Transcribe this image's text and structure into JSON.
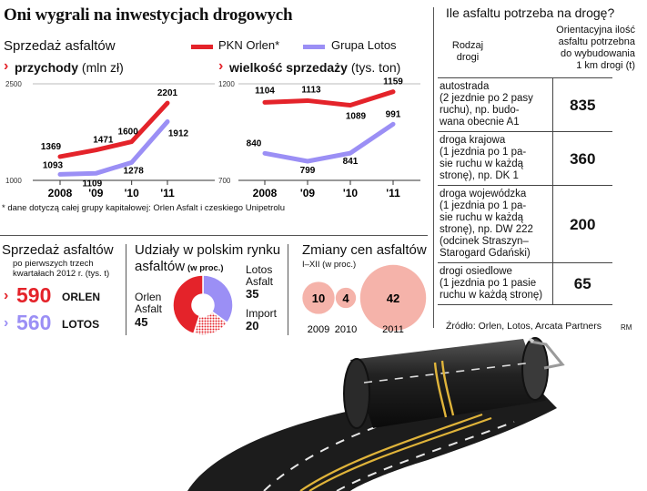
{
  "title": "Oni wygrali na inwestycjach drogowych",
  "legend": {
    "section_label": "Sprzedaż asfaltów",
    "orlen": "PKN Orlen*",
    "lotos": "Grupa Lotos"
  },
  "colors": {
    "orlen": "#e4232a",
    "lotos": "#9b8ff5",
    "orlen_light": "#f5b3aa",
    "lotos_light": "#c6c1f7"
  },
  "footnote": "* dane dotyczą całej grupy kapitałowej: Orlen Asfalt i czeskiego Unipetrolu",
  "chart_data": [
    {
      "type": "line",
      "title": "przychody",
      "unit": "(mln zł)",
      "x": [
        "2008",
        "'09",
        "'10",
        "'11"
      ],
      "ylim": [
        1000,
        2500
      ],
      "ytick_labels": [
        "2500",
        "1000"
      ],
      "series": [
        {
          "name": "PKN Orlen*",
          "values": [
            1369,
            1471,
            1600,
            2201
          ]
        },
        {
          "name": "Grupa Lotos",
          "values": [
            1093,
            1109,
            1278,
            1912
          ]
        }
      ]
    },
    {
      "type": "line",
      "title": "wielkość sprzedaży",
      "unit": "(tys. ton)",
      "x": [
        "2008",
        "'09",
        "'10",
        "'11"
      ],
      "ylim": [
        700,
        1200
      ],
      "ytick_labels": [
        "1200",
        "700"
      ],
      "series": [
        {
          "name": "PKN Orlen*",
          "values": [
            1104,
            1113,
            1089,
            1159
          ]
        },
        {
          "name": "Grupa Lotos",
          "values": [
            840,
            799,
            841,
            991
          ]
        }
      ]
    },
    {
      "type": "pie",
      "title": "Udziały w polskim rynku asfaltów",
      "unit": "(w proc.)",
      "labels": [
        "Lotos Asfalt",
        "Orlen Asfalt",
        "Import"
      ],
      "values": [
        35,
        45,
        20
      ]
    },
    {
      "type": "bubble",
      "title": "Zmiany cen asfaltów",
      "subtitle": "I–XII (w proc.)",
      "categories": [
        "2009",
        "2010",
        "2011"
      ],
      "values": [
        10,
        4,
        42
      ]
    },
    {
      "type": "table",
      "title": "Ile asfaltu potrzeba na drogę?",
      "header": [
        "Rodzaj drogi",
        "Orientacyjna ilość asfaltu potrzebna do wybudowania 1 km drogi (t)"
      ],
      "rows": [
        {
          "desc": "autostrada (2 jezdnie po 2 pasy ruchu), np. budowana obecnie A1",
          "value": "835"
        },
        {
          "desc": "droga krajowa (1 jezdnia po 1 pasie ruchu w każdą stronę), np. DK 1",
          "value": "360"
        },
        {
          "desc": "droga wojewódzka (1 jezdnia po 1 pasie ruchu w każdą stronę), np. DW 222 (odcinek Straszyn–Starogard Gdański)",
          "value": "200"
        },
        {
          "desc": "drogi osiedlowe (1 jezdnia po 1 pasie ruchu w każdą stronę)",
          "value": "65"
        }
      ]
    }
  ],
  "sales_q": {
    "title": "Sprzedaż asfaltów",
    "subtitle1": "po pierwszych trzech",
    "subtitle2": "kwartałach 2012 r. (tys. t)",
    "orlen_value": "590",
    "orlen_name": "ORLEN",
    "lotos_value": "560",
    "lotos_name": "LOTOS"
  },
  "pie_title1": "Udziały w polskim rynku",
  "pie_title2": "asfaltów",
  "pie_unit": "(w proc.)",
  "pie_labels": {
    "lotos1": "Lotos",
    "lotos2": "Asfalt",
    "lotos_val": "35",
    "orlen1": "Orlen",
    "orlen2": "Asfalt",
    "orlen_val": "45",
    "import": "Import",
    "import_val": "20"
  },
  "bubble_title": "Zmiany cen asfaltów",
  "bubble_sub": "I–XII (w proc.)",
  "table_title": "Ile asfaltu potrzeba na drogę?",
  "table_header": {
    "col1_a": "Rodzaj",
    "col1_b": "drogi",
    "col2_a": "Orientacyjna ilość",
    "col2_b": "asfaltu potrzebna",
    "col2_c": "do wybudowania",
    "col2_d": "1 km drogi (t)"
  },
  "table_rows": [
    {
      "lines": [
        "autostrada",
        "(2 jezdnie po 2 pasy",
        "ruchu), np. budo-",
        "wana obecnie A1"
      ],
      "value": "835"
    },
    {
      "lines": [
        "droga krajowa",
        "(1 jezdnia po 1 pa-",
        "sie ruchu w każdą",
        "stronę), np. DK 1"
      ],
      "value": "360"
    },
    {
      "lines": [
        "droga wojewódzka",
        "(1 jezdnia po 1 pa-",
        "sie ruchu w każdą",
        "stronę), np. DW 222",
        "(odcinek Straszyn–",
        "Starogard Gdański)"
      ],
      "value": "200"
    },
    {
      "lines": [
        "drogi osiedlowe",
        "(1 jezdnia po 1 pasie",
        "ruchu w każdą stronę)"
      ],
      "value": "65"
    }
  ],
  "source": "Źródło: Orlen, Lotos, Arcata Partners",
  "author": "RM"
}
